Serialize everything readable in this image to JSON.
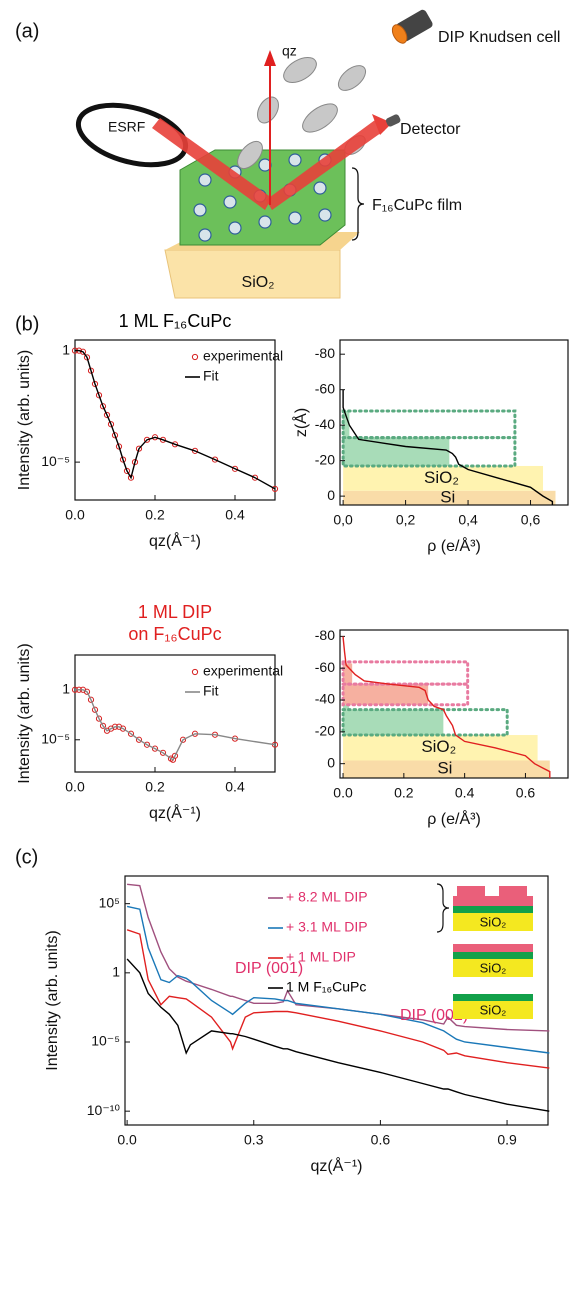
{
  "panel_a": {
    "label": "(a)",
    "q_axis": "qz",
    "source": "ESRF",
    "detector": "Detector",
    "cell": "DIP Knudsen cell",
    "film": "F₁₆CuPc film",
    "substrate": "SiO₂"
  },
  "chart_data": [
    {
      "type": "line",
      "panel_label": "(b)",
      "title": "1 ML  F₁₆CuPc",
      "title_color": "#000000",
      "xlabel": "qz(Å⁻¹)",
      "ylabel": "Intensity (arb. units)",
      "log_y": true,
      "legend": "upper right",
      "xlim": [
        0,
        0.5
      ],
      "ylim": [
        2e-07,
        3
      ],
      "xticks": [
        {
          "value": 0,
          "label": "0.0"
        },
        0.2,
        0.4
      ],
      "yticks": [
        1,
        {
          "value": 1e-05,
          "label": "10⁻⁵"
        }
      ],
      "x": [
        0,
        0.01,
        0.02,
        0.03,
        0.04,
        0.05,
        0.06,
        0.07,
        0.08,
        0.09,
        0.1,
        0.11,
        0.12,
        0.13,
        0.14,
        0.15,
        0.16,
        0.18,
        0.2,
        0.22,
        0.25,
        0.3,
        0.35,
        0.4,
        0.45,
        0.5
      ],
      "series": [
        {
          "name": "experimental",
          "color": "#d62020",
          "marker": "circle",
          "values": [
            1,
            1,
            0.89,
            0.5,
            0.126,
            0.032,
            0.01,
            0.0032,
            0.0013,
            0.0005,
            0.00016,
            5e-05,
            1.3e-05,
            4e-06,
            2e-06,
            1e-05,
            4e-05,
            0.0001,
            0.00013,
            0.0001,
            6.3e-05,
            3.2e-05,
            1.3e-05,
            5e-06,
            2e-06,
            6.3e-07
          ]
        },
        {
          "name": "Fit",
          "color": "#000000",
          "marker": "none",
          "values": [
            1,
            1,
            0.89,
            0.5,
            0.126,
            0.032,
            0.01,
            0.0032,
            0.0013,
            0.0005,
            0.00016,
            5e-05,
            1.3e-05,
            4e-06,
            2e-06,
            1e-05,
            4e-05,
            0.0001,
            0.00013,
            0.0001,
            6.3e-05,
            3.2e-05,
            1.3e-05,
            5e-06,
            2e-06,
            6.3e-07
          ]
        }
      ]
    },
    {
      "type": "line",
      "xlabel": "ρ (e/Å³)",
      "ylabel": "z(Å)",
      "xlim": [
        -0.01,
        0.72
      ],
      "ylim": [
        5,
        -88
      ],
      "xticks": [
        {
          "value": 0,
          "label": "0,0"
        },
        {
          "value": 0.2,
          "label": "0,2"
        },
        {
          "value": 0.4,
          "label": "0,4"
        },
        {
          "value": 0.6,
          "label": "0,6"
        }
      ],
      "yticks": [
        -80,
        -60,
        -40,
        -20,
        0
      ],
      "regions": [
        {
          "rho": [
            0,
            0.68
          ],
          "z": [
            -3,
            5
          ],
          "color": "#f9dca8",
          "style": "fill",
          "label": "Si"
        },
        {
          "rho": [
            0,
            0.64
          ],
          "z": [
            -17,
            -3
          ],
          "color": "#fff3b0",
          "style": "fill",
          "label": "SiO₂"
        },
        {
          "rho": [
            0,
            0.34
          ],
          "z": [
            -33,
            -17
          ],
          "color": "#a8dcb8",
          "style": "fill"
        },
        {
          "rho": [
            0,
            0.02
          ],
          "z": [
            -48,
            -33
          ],
          "color": "#a8dcb8",
          "style": "fill"
        },
        {
          "rho": [
            0,
            0.55
          ],
          "z": [
            -33,
            -17
          ],
          "color": "#5aaa80",
          "style": "dotted"
        },
        {
          "rho": [
            0,
            0.55
          ],
          "z": [
            -48,
            -33
          ],
          "color": "#5aaa80",
          "style": "dotted"
        }
      ],
      "x": [
        0,
        0,
        0.01,
        0.02,
        0.05,
        0.2,
        0.33,
        0.35,
        0.36,
        0.37,
        0.4,
        0.5,
        0.6,
        0.64,
        0.67,
        0.67
      ],
      "series": [
        {
          "color": "#000000",
          "marker": "none",
          "values": [
            -60,
            -50,
            -45,
            -40,
            -32,
            -28,
            -26,
            -24,
            -22,
            -18,
            -15,
            -10,
            -5,
            0,
            3,
            5
          ]
        }
      ]
    },
    {
      "type": "line",
      "title": "1  ML DIP",
      "subtitle": "on F₁₆CuPc",
      "title_color": "#e02020",
      "xlabel": "qz(Å⁻¹)",
      "ylabel": "Intensity (arb. units)",
      "log_y": true,
      "legend": "upper right",
      "xlim": [
        0,
        0.5
      ],
      "ylim": [
        6e-09,
        3000
      ],
      "xticks": [
        {
          "value": 0,
          "label": "0.0"
        },
        0.2,
        0.4
      ],
      "yticks": [
        1,
        {
          "value": 1e-05,
          "label": "10⁻⁵"
        }
      ],
      "x": [
        0,
        0.01,
        0.02,
        0.03,
        0.04,
        0.05,
        0.06,
        0.07,
        0.08,
        0.09,
        0.1,
        0.11,
        0.12,
        0.14,
        0.16,
        0.18,
        0.2,
        0.22,
        0.24,
        0.245,
        0.25,
        0.27,
        0.3,
        0.35,
        0.4,
        0.5
      ],
      "series": [
        {
          "name": "experimental",
          "color": "#d62020",
          "marker": "circle",
          "values": [
            1,
            1,
            1,
            0.63,
            0.1,
            0.01,
            0.0013,
            0.00025,
            8e-05,
            0.00013,
            0.0002,
            0.0002,
            0.00013,
            4e-05,
            1e-05,
            3.2e-06,
            1.3e-06,
            5e-07,
            1.3e-07,
            1e-07,
            2.5e-07,
            1e-05,
            4e-05,
            3.2e-05,
            1.3e-05,
            3.2e-06
          ]
        },
        {
          "name": "Fit",
          "color": "#888888",
          "marker": "none",
          "values": [
            1,
            1,
            1,
            0.63,
            0.1,
            0.01,
            0.0013,
            0.00025,
            8e-05,
            0.00013,
            0.0002,
            0.0002,
            0.00013,
            4e-05,
            1e-05,
            3.2e-06,
            1.3e-06,
            5e-07,
            1.3e-07,
            1e-07,
            2.5e-07,
            1e-05,
            4e-05,
            3.2e-05,
            1.3e-05,
            3.2e-06
          ]
        }
      ]
    },
    {
      "type": "line",
      "xlabel": "ρ (e/Å³)",
      "xlim": [
        -0.01,
        0.74
      ],
      "ylim": [
        9,
        -84
      ],
      "xticks": [
        {
          "value": 0,
          "label": "0.0"
        },
        0.2,
        0.4,
        0.6
      ],
      "yticks": [
        -80,
        -60,
        -40,
        -20,
        0
      ],
      "regions": [
        {
          "rho": [
            0,
            0.68
          ],
          "z": [
            -2,
            9
          ],
          "color": "#f9dca8",
          "style": "fill",
          "label": "Si"
        },
        {
          "rho": [
            0,
            0.64
          ],
          "z": [
            -18,
            -2
          ],
          "color": "#fff3b0",
          "style": "fill",
          "label": "SiO₂"
        },
        {
          "rho": [
            0,
            0.33
          ],
          "z": [
            -34,
            -18
          ],
          "color": "#a8dcb8",
          "style": "fill"
        },
        {
          "rho": [
            0,
            0.02
          ],
          "z": [
            -37,
            -34
          ],
          "color": "#a8dcb8",
          "style": "fill"
        },
        {
          "rho": [
            0,
            0.28
          ],
          "z": [
            -50,
            -37
          ],
          "color": "#f6b0a0",
          "style": "fill"
        },
        {
          "rho": [
            0,
            0.03
          ],
          "z": [
            -63,
            -50
          ],
          "color": "#f6b0a0",
          "style": "fill"
        },
        {
          "rho": [
            0,
            0.54
          ],
          "z": [
            -34,
            -18
          ],
          "color": "#5aaa80",
          "style": "dotted"
        },
        {
          "rho": [
            0,
            0.41
          ],
          "z": [
            -50,
            -37
          ],
          "color": "#e87aa0",
          "style": "dotted"
        },
        {
          "rho": [
            0,
            0.41
          ],
          "z": [
            -64,
            -50
          ],
          "color": "#e87aa0",
          "style": "dotted"
        }
      ],
      "x": [
        0,
        0.005,
        0.01,
        0.04,
        0.07,
        0.15,
        0.25,
        0.27,
        0.28,
        0.3,
        0.33,
        0.34,
        0.36,
        0.37,
        0.4,
        0.5,
        0.6,
        0.63,
        0.66,
        0.68,
        0.68
      ],
      "series": [
        {
          "color": "#e02020",
          "marker": "none",
          "values": [
            -80,
            -70,
            -62,
            -56,
            -52,
            -50,
            -48,
            -46,
            -40,
            -36,
            -34,
            -30,
            -24,
            -18,
            -14,
            -10,
            -5,
            0,
            3,
            5,
            9
          ]
        }
      ]
    },
    {
      "type": "line",
      "panel_label": "(c)",
      "xlabel": "qz(Å⁻¹)",
      "ylabel": "Intensity (arb. units)",
      "log_y": true,
      "legend": "upper right",
      "xlim": [
        -0.005,
        0.997
      ],
      "ylim": [
        1e-11,
        10000000.0
      ],
      "xticks": [
        {
          "value": 0,
          "label": "0.0"
        },
        0.3,
        0.6,
        0.9
      ],
      "yticks": [
        {
          "value": 100000,
          "label": "10⁵"
        },
        1,
        {
          "value": 1e-05,
          "label": "10⁻⁵"
        },
        {
          "value": 1e-10,
          "label": "10⁻¹⁰"
        }
      ],
      "annotations": [
        "DIP (001)",
        "DIP (002)"
      ],
      "annotation_color": "#e0306b",
      "inset_labels": [
        "SiO₂",
        "SiO₂",
        "SiO₂"
      ],
      "x": [
        0,
        0.03,
        0.05,
        0.08,
        0.1,
        0.12,
        0.14,
        0.15,
        0.2,
        0.245,
        0.25,
        0.28,
        0.3,
        0.35,
        0.37,
        0.38,
        0.4,
        0.5,
        0.6,
        0.7,
        0.75,
        0.76,
        0.78,
        0.8,
        0.9,
        1.0
      ],
      "series": [
        {
          "name": "+ 8.2 ML DIP",
          "color": "#a0507e",
          "label_color": "#e0306b",
          "marker": "none",
          "values": [
            2500000.0,
            2000000.0,
            10000.0,
            32,
            2,
            0.5,
            0.25,
            0.2,
            0.063,
            0.02,
            0.02,
            0.01,
            0.0063,
            0.0063,
            0.008,
            0.05,
            0.005,
            0.0025,
            0.001,
            0.0004,
            0.0002,
            0.00063,
            0.00016,
            0.00013,
            8e-05,
            6.3e-05
          ]
        },
        {
          "name": "+ 3.1  ML  DIP",
          "color": "#1a78b8",
          "label_color": "#e0306b",
          "marker": "none",
          "values": [
            63000.0,
            40000.0,
            63,
            0.32,
            0.2,
            0.63,
            0.4,
            0.25,
            0.01,
            0.0013,
            0.001,
            0.0063,
            0.016,
            0.013,
            0.01,
            0.01,
            0.0063,
            0.0025,
            0.001,
            0.00025,
            6.3e-05,
            4e-05,
            1.6e-05,
            1e-05,
            4e-06,
            1.6e-06
          ]
        },
        {
          "name": "+ 1  ML  DIP",
          "color": "#e02020",
          "label_color": "#e0306b",
          "marker": "none",
          "values": [
            1300,
            630,
            0.32,
            0.005,
            0.02,
            0.016,
            0.013,
            0.008,
            0.00063,
            1e-05,
            3.2e-06,
            0.00063,
            0.0013,
            0.0016,
            0.0016,
            0.0016,
            0.0013,
            0.00032,
            6.3e-05,
            1e-05,
            2.5e-06,
            1.3e-06,
            1.6e-06,
            1e-06,
            3.2e-07,
            1.3e-07
          ]
        },
        {
          "name": "1  M F₁₆CuPc",
          "color": "#000000",
          "label_color": "#000000",
          "marker": "none",
          "values": [
            10,
            1,
            0.032,
            0.0032,
            0.001,
            0.00016,
            1.6e-06,
            6.3e-06,
            6.3e-05,
            4e-05,
            4e-05,
            2.5e-05,
            1.6e-05,
            5e-06,
            3.2e-06,
            3.2e-06,
            2e-06,
            3.2e-07,
            6.3e-08,
            1e-08,
            4e-09,
            4e-09,
            2.5e-09,
            1.6e-09,
            3.2e-10,
            1e-10
          ]
        }
      ]
    }
  ]
}
